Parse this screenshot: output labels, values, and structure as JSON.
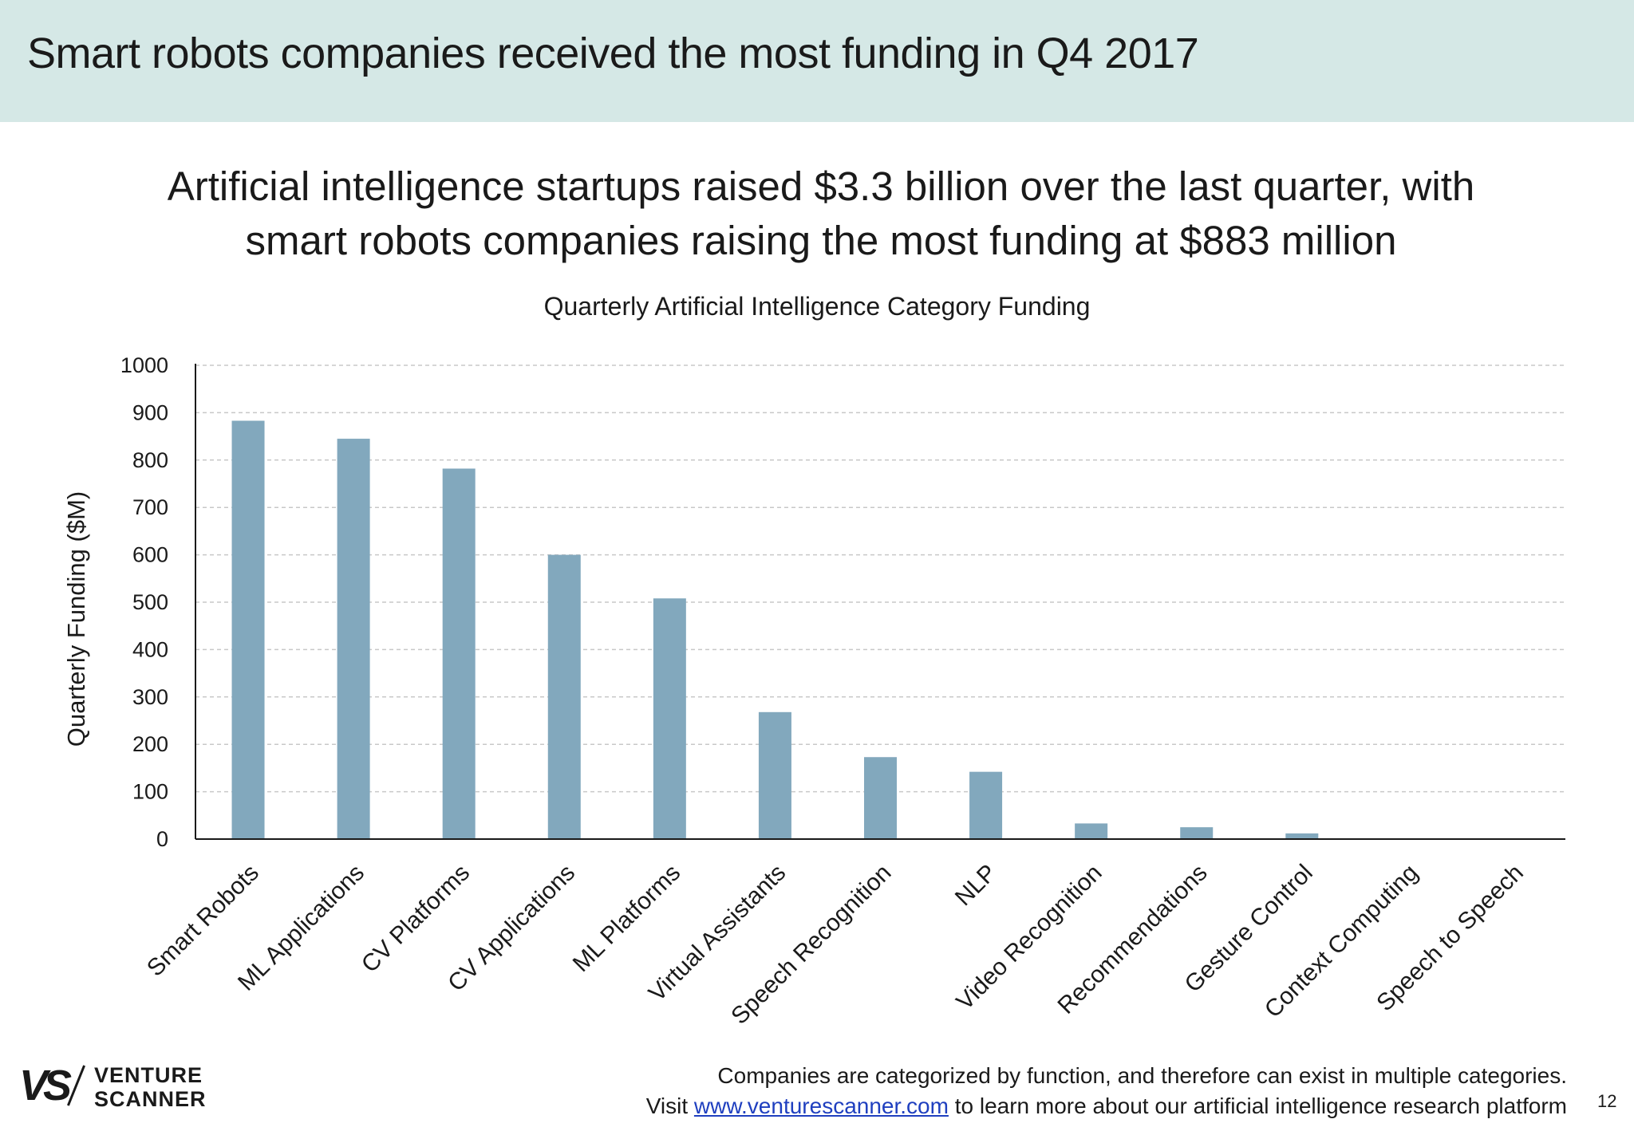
{
  "header": {
    "title": "Smart robots companies received the most funding in Q4 2017"
  },
  "headline": {
    "line1": "Artificial intelligence startups raised $3.3 billion over the last quarter, with",
    "line2": "smart robots companies raising the most funding at $883 million"
  },
  "colors": {
    "header_band": "#d5e8e6",
    "bar": "#82a8bd",
    "gridline": "#c8c8c8",
    "axis": "#1a1a1a",
    "link": "#1f3fbf"
  },
  "chart_data": {
    "type": "bar",
    "title": "Quarterly Artificial Intelligence Category Funding",
    "xlabel": "",
    "ylabel": "Quarterly Funding ($M)",
    "ylim": [
      0,
      1000
    ],
    "yticks": [
      0,
      100,
      200,
      300,
      400,
      500,
      600,
      700,
      800,
      900,
      1000
    ],
    "grid": true,
    "categories": [
      "Smart Robots",
      "ML Applications",
      "CV Platforms",
      "CV Applications",
      "ML Platforms",
      "Virtual Assistants",
      "Speech Recognition",
      "NLP",
      "Video Recognition",
      "Recommendations",
      "Gesture Control",
      "Context Computing",
      "Speech to Speech"
    ],
    "values": [
      883,
      845,
      782,
      600,
      508,
      268,
      173,
      142,
      33,
      25,
      12,
      0,
      0
    ]
  },
  "logo": {
    "mark": "VS",
    "line1": "VENTURE",
    "line2": "SCANNER"
  },
  "footer": {
    "line1": "Companies are categorized by function, and therefore can exist in multiple categories.",
    "line2_prefix": "Visit ",
    "link_text": "www.venturescanner.com",
    "line2_suffix": " to learn more about our artificial intelligence research platform"
  },
  "page_number": "12"
}
